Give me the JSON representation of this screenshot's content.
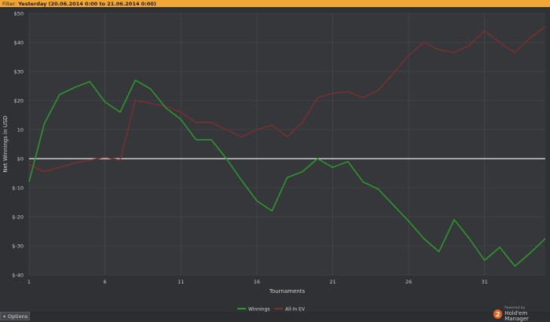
{
  "filter": {
    "label": "Filter:",
    "value": "Yesterday (20.06.2014 0:00 to 21.06.2014 0:00)"
  },
  "footer": {
    "options_label": "Options",
    "powered_by": "Powered by",
    "brand": "Hold'em Manager",
    "brand_badge": "2"
  },
  "colors": {
    "winnings": "#2e9a2e",
    "allin_ev": "#7a2f31",
    "zero_line": "#e8e8e8",
    "grid": "#4a4d52",
    "background": "#35373a"
  },
  "chart_data": {
    "type": "line",
    "xlabel": "Tournaments",
    "ylabel": "Net Winnings in USD",
    "xlim": [
      1,
      35
    ],
    "ylim": [
      -40,
      50
    ],
    "x_ticks": [
      1,
      6,
      11,
      16,
      21,
      26,
      31
    ],
    "y_ticks": [
      50,
      40,
      30,
      20,
      10,
      0,
      -10,
      -20,
      -30,
      -40
    ],
    "y_tick_labels": [
      "$50",
      "$40",
      "$30",
      "$20",
      "10",
      "$0",
      "$-10",
      "$-20",
      "$-30",
      "$-40"
    ],
    "grid": true,
    "legend_position": "bottom-center",
    "x": [
      1,
      2,
      3,
      4,
      5,
      6,
      7,
      8,
      9,
      10,
      11,
      12,
      13,
      14,
      15,
      16,
      17,
      18,
      19,
      20,
      21,
      22,
      23,
      24,
      25,
      26,
      27,
      28,
      29,
      30,
      31,
      32,
      33,
      34,
      35
    ],
    "series": [
      {
        "name": "Winnings",
        "values": [
          -8,
          12,
          22,
          24.5,
          26.5,
          19.5,
          16,
          27,
          24,
          17.5,
          13.5,
          6.5,
          6.5,
          0,
          -7.5,
          -14.5,
          -18,
          -6.5,
          -4.5,
          0,
          -3,
          -1,
          -8,
          -10.5,
          -16,
          -21.5,
          -27.5,
          -32,
          -21,
          -27.5,
          -35,
          -30.5,
          -37,
          -32.5,
          -27.5
        ]
      },
      {
        "name": "All-In EV",
        "values": [
          -2,
          -4.5,
          -3,
          -1.5,
          -0.5,
          0.5,
          -0.5,
          20,
          19,
          18,
          16,
          12.5,
          12.5,
          10,
          7.5,
          10,
          11.5,
          7.5,
          12.5,
          21,
          22.5,
          23,
          21,
          23.5,
          29.5,
          35.5,
          40,
          37.5,
          36.5,
          39,
          44,
          40,
          36.5,
          41.5,
          45.5
        ]
      }
    ]
  }
}
